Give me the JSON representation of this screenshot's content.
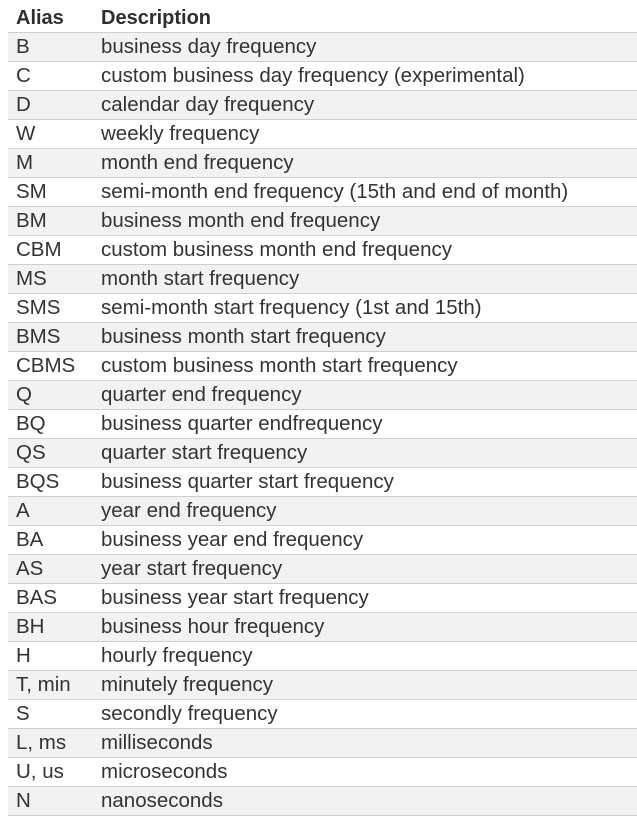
{
  "table": {
    "headers": {
      "alias": "Alias",
      "description": "Description"
    },
    "rows": [
      {
        "alias": "B",
        "description": "business day frequency"
      },
      {
        "alias": "C",
        "description": "custom business day frequency (experimental)"
      },
      {
        "alias": "D",
        "description": "calendar day frequency"
      },
      {
        "alias": "W",
        "description": "weekly frequency"
      },
      {
        "alias": "M",
        "description": "month end frequency"
      },
      {
        "alias": "SM",
        "description": "semi-month end frequency (15th and end of month)"
      },
      {
        "alias": "BM",
        "description": "business month end frequency"
      },
      {
        "alias": "CBM",
        "description": "custom business month end frequency"
      },
      {
        "alias": "MS",
        "description": "month start frequency"
      },
      {
        "alias": "SMS",
        "description": "semi-month start frequency (1st and 15th)"
      },
      {
        "alias": "BMS",
        "description": "business month start frequency"
      },
      {
        "alias": "CBMS",
        "description": "custom business month start frequency"
      },
      {
        "alias": "Q",
        "description": "quarter end frequency"
      },
      {
        "alias": "BQ",
        "description": "business quarter endfrequency"
      },
      {
        "alias": "QS",
        "description": "quarter start frequency"
      },
      {
        "alias": "BQS",
        "description": "business quarter start frequency"
      },
      {
        "alias": "A",
        "description": "year end frequency"
      },
      {
        "alias": "BA",
        "description": "business year end frequency"
      },
      {
        "alias": "AS",
        "description": "year start frequency"
      },
      {
        "alias": "BAS",
        "description": "business year start frequency"
      },
      {
        "alias": "BH",
        "description": "business hour frequency"
      },
      {
        "alias": "H",
        "description": "hourly frequency"
      },
      {
        "alias": "T, min",
        "description": "minutely frequency"
      },
      {
        "alias": "S",
        "description": "secondly frequency"
      },
      {
        "alias": "L, ms",
        "description": "milliseconds"
      },
      {
        "alias": "U, us",
        "description": "microseconds"
      },
      {
        "alias": "N",
        "description": "nanoseconds"
      }
    ]
  }
}
